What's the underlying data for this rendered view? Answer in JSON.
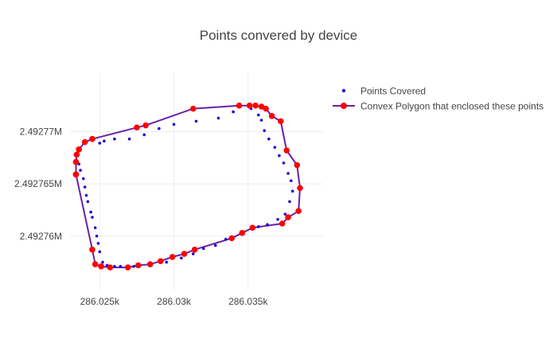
{
  "chart_data": {
    "type": "scatter",
    "title": "Points convered by device",
    "xlabel": "",
    "ylabel": "",
    "xlim": [
      286023.0,
      286040.0
    ],
    "ylim": [
      2492754.8,
      2492775.6
    ],
    "x_ticks": [
      {
        "value": 286025,
        "label": "286.025k"
      },
      {
        "value": 286030,
        "label": "286.03k"
      },
      {
        "value": 286035,
        "label": "286.035k"
      }
    ],
    "y_ticks": [
      {
        "value": 2492760,
        "label": "2.49276M"
      },
      {
        "value": 2492765,
        "label": "2.492765M"
      },
      {
        "value": 2492770,
        "label": "2.49277M"
      }
    ],
    "grid": true,
    "legend_position": "top-right",
    "colors": {
      "points": "#1f00d6",
      "polygon_line": "#6a1fa8",
      "polygon_markers": "#ff0000"
    },
    "series": [
      {
        "name": "Points Covered",
        "mode": "markers",
        "x": [
          286023.5,
          286023.6,
          286023.7,
          286023.9,
          286024.0,
          286024.1,
          286024.2,
          286024.4,
          286024.5,
          286024.7,
          286024.8,
          286024.9,
          286025.0,
          286025.2,
          286025.5,
          286026.0,
          286026.4,
          286027.3,
          286028.5,
          286029.5,
          286030.5,
          286031.3,
          286032.0,
          286032.8,
          286033.5,
          286034.5,
          286035.7,
          286036.3,
          286037.0,
          286037.5,
          286037.8,
          286038.0,
          286037.9,
          286037.7,
          286037.4,
          286037.1,
          286036.8,
          286036.4,
          286036.1,
          286035.9,
          286035.7,
          286035.2,
          286034.0,
          286033.0,
          286031.5,
          286030.0,
          286029.0,
          286028.0,
          286027.0,
          286026.0,
          286025.3,
          286025.0
        ],
        "y": [
          2492768.3,
          2492766.9,
          2492766.3,
          2492765.5,
          2492764.7,
          2492763.9,
          2492763.3,
          2492762.3,
          2492761.8,
          2492760.8,
          2492760.0,
          2492759.3,
          2492758.5,
          2492757.5,
          2492757.2,
          2492757.1,
          2492757.1,
          2492757.1,
          2492757.3,
          2492757.5,
          2492757.9,
          2492758.3,
          2492758.8,
          2492759.1,
          2492759.7,
          2492760.3,
          2492760.9,
          2492761.1,
          2492761.6,
          2492762.1,
          2492763.3,
          2492764.3,
          2492765.3,
          2492766.0,
          2492767.0,
          2492767.7,
          2492768.5,
          2492769.3,
          2492770.1,
          2492771.1,
          2492771.6,
          2492772.2,
          2492771.9,
          2492771.3,
          2492771.0,
          2492770.7,
          2492770.3,
          2492769.7,
          2492769.3,
          2492769.3,
          2492769.1,
          2492768.9
        ]
      },
      {
        "name": "Convex Polygon that enclosed these points",
        "mode": "lines+markers",
        "x": [
          286023.4,
          286023.4,
          286023.45,
          286023.6,
          286024.0,
          286024.5,
          286027.5,
          286028.1,
          286031.3,
          286034.4,
          286035.1,
          286035.5,
          286035.9,
          286036.2,
          286036.6,
          286037.2,
          286037.6,
          286038.3,
          286038.5,
          286038.4,
          286037.7,
          286037.3,
          286035.3,
          286034.6,
          286033.9,
          286031.4,
          286030.7,
          286029.9,
          286029.1,
          286028.4,
          286027.6,
          286026.9,
          286025.7,
          286025.1,
          286024.7,
          286024.5,
          286023.4
        ],
        "y": [
          2492765.9,
          2492767.1,
          2492767.8,
          2492768.3,
          2492769.0,
          2492769.3,
          2492770.4,
          2492770.6,
          2492772.2,
          2492772.5,
          2492772.5,
          2492772.5,
          2492772.4,
          2492772.2,
          2492771.5,
          2492771.0,
          2492768.2,
          2492766.8,
          2492764.6,
          2492762.4,
          2492761.8,
          2492761.2,
          2492760.8,
          2492760.3,
          2492759.8,
          2492758.7,
          2492758.3,
          2492758.0,
          2492757.6,
          2492757.3,
          2492757.2,
          2492757.0,
          2492757.0,
          2492757.1,
          2492757.3,
          2492758.7,
          2492765.9
        ]
      }
    ]
  }
}
